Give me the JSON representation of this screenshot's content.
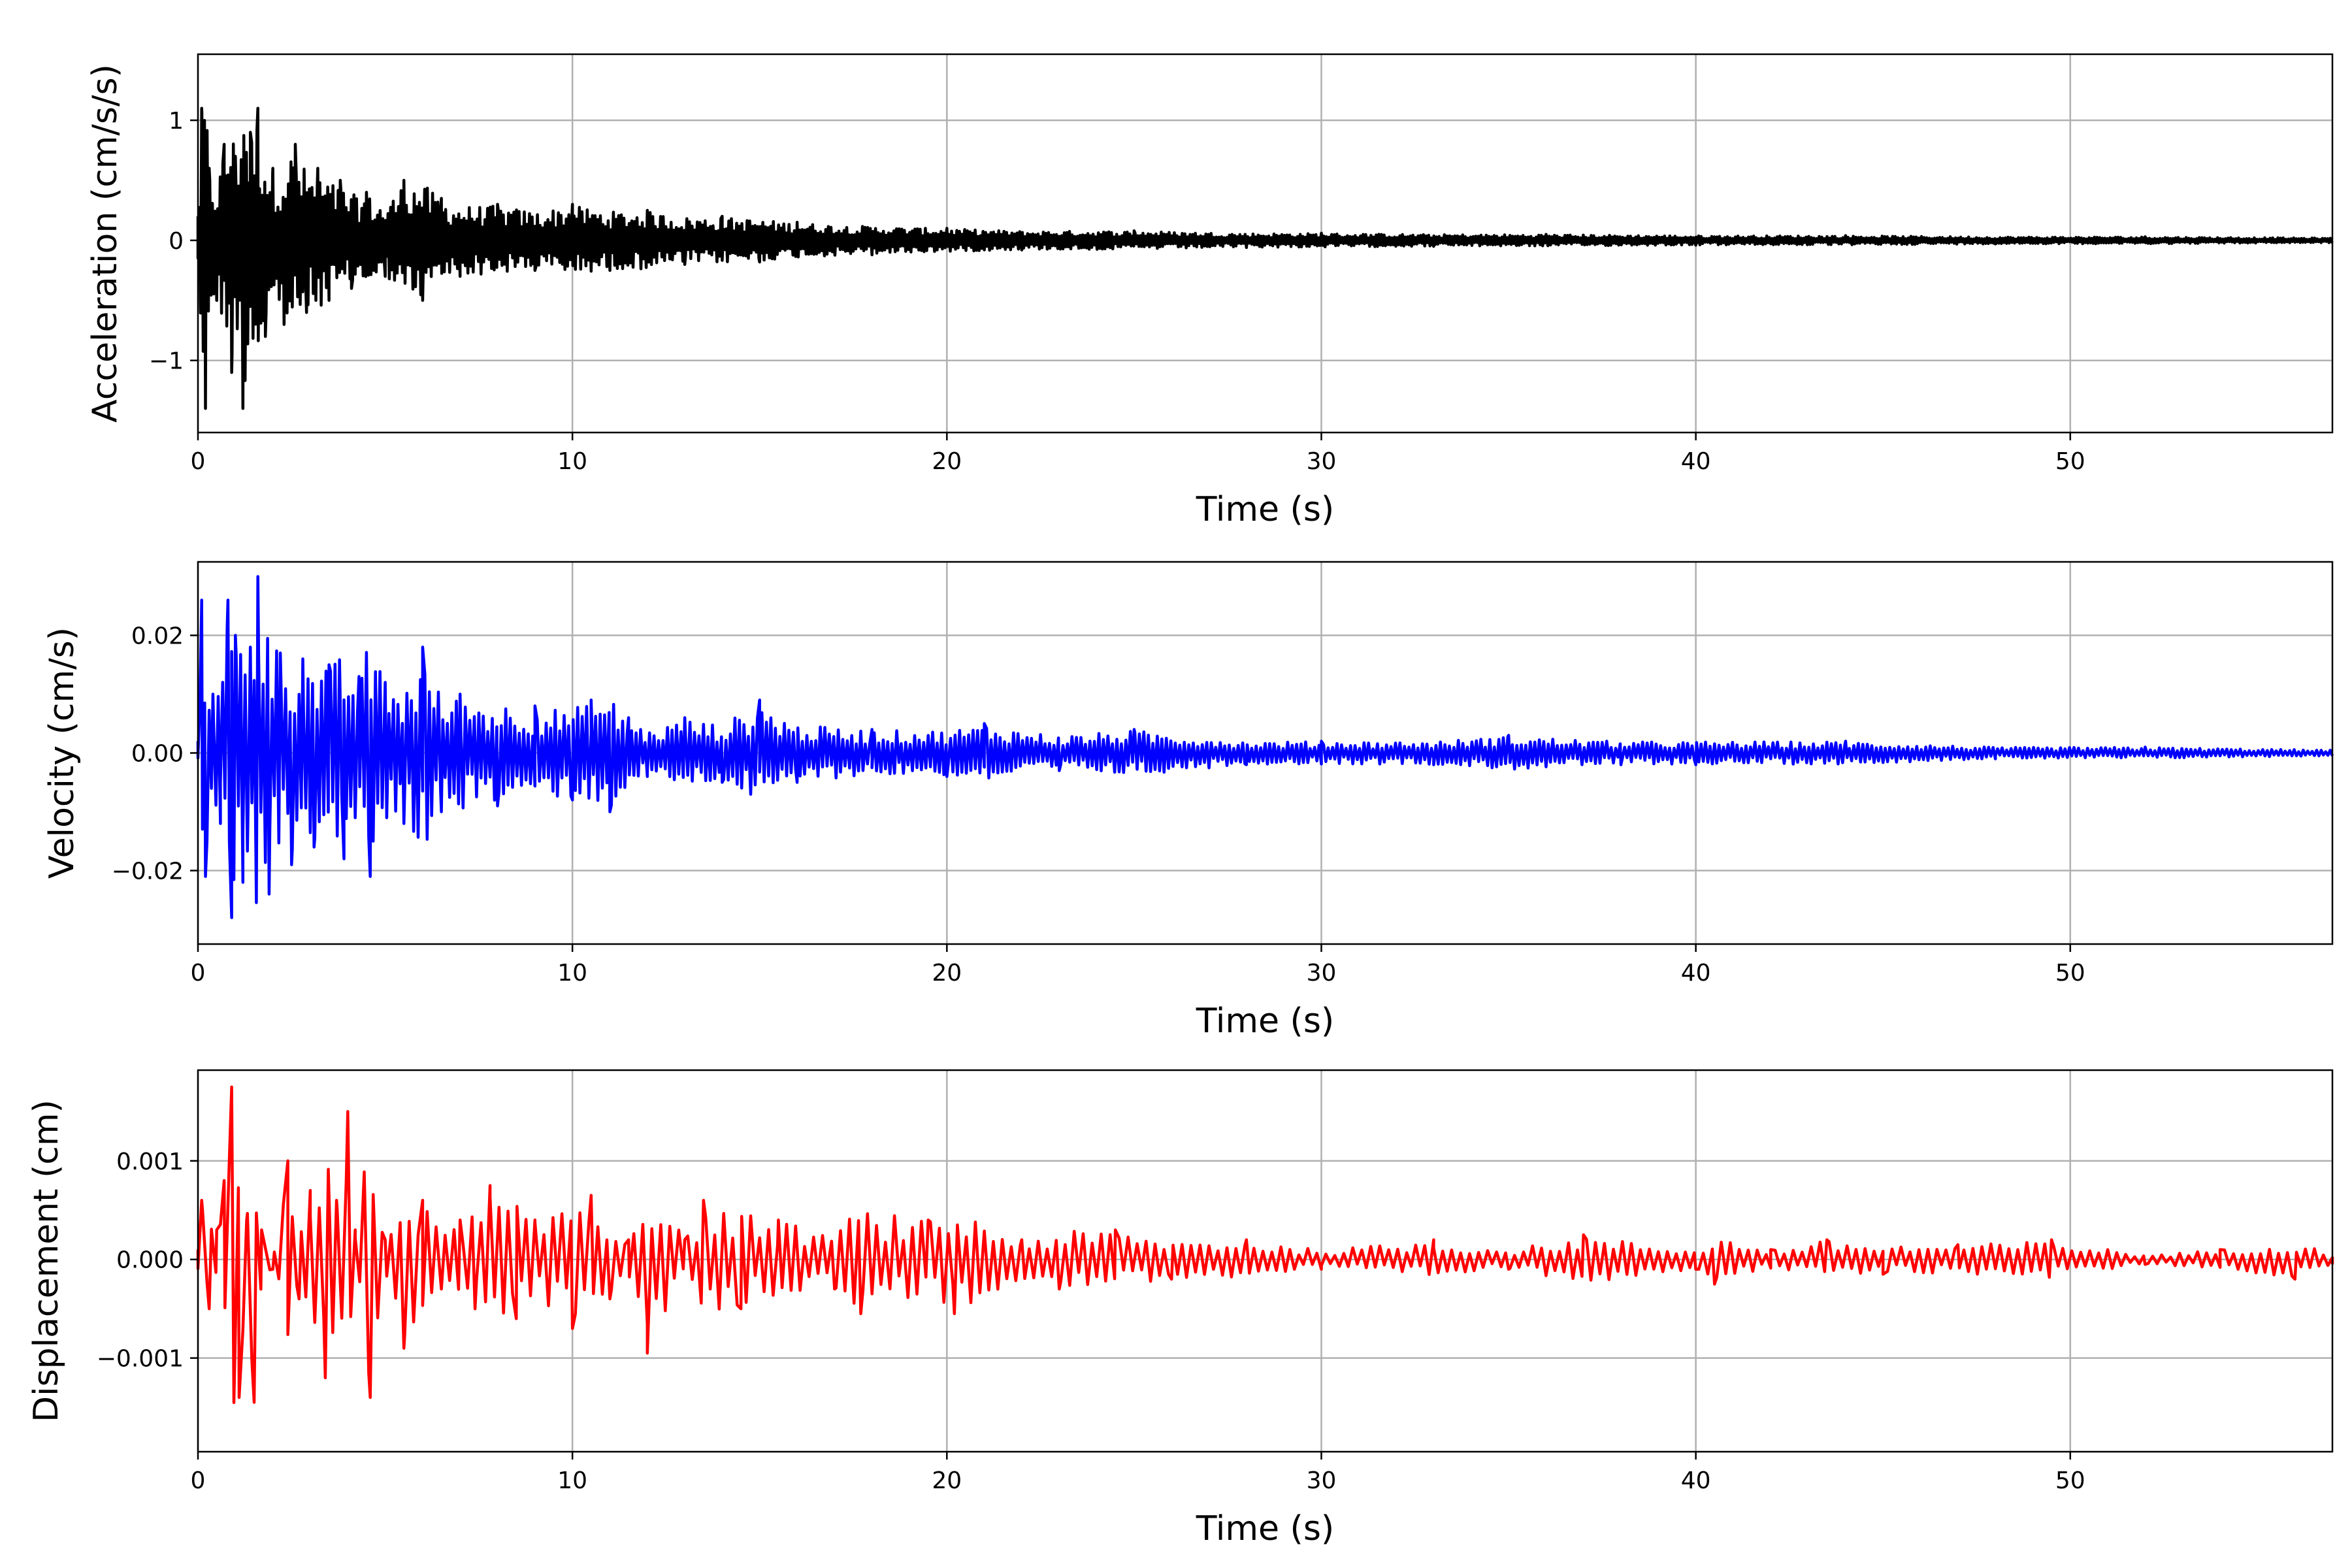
{
  "chart_data": [
    {
      "type": "line",
      "name_key": "acceleration",
      "xlabel": "Time (s)",
      "ylabel": "Acceleration (cm/s/s)",
      "xlim": [
        0,
        57
      ],
      "ylim": [
        -1.6,
        1.55
      ],
      "xticks": [
        0,
        10,
        20,
        30,
        40,
        50
      ],
      "xtick_labels": [
        "0",
        "10",
        "20",
        "30",
        "40",
        "50"
      ],
      "yticks": [
        -1,
        0,
        1
      ],
      "ytick_labels": [
        "−1",
        "0",
        "1"
      ],
      "grid": true,
      "color": "#000000",
      "series": [
        {
          "x": [
            0,
            0.1,
            0.2,
            0.3,
            0.5,
            0.7,
            0.9,
            1.0,
            1.2,
            1.4,
            1.6,
            1.8,
            2.0,
            2.3,
            2.6,
            2.9,
            3.2,
            3.5,
            3.8,
            4.1,
            4.5,
            5.0,
            5.5,
            6.0,
            6.5,
            7.0,
            8.0,
            9.0,
            10.0,
            11.0,
            12.0,
            13.0,
            14.0,
            15.0,
            16.0,
            18.0,
            20.0,
            22.0,
            25.0,
            28.0,
            30.0,
            33.0,
            36.0,
            40.0,
            44.0,
            48.0,
            52.0,
            57.0
          ],
          "y": [
            0.2,
            1.1,
            -1.4,
            0.6,
            -0.5,
            0.8,
            -1.1,
            0.7,
            -1.4,
            0.9,
            1.1,
            -0.8,
            0.6,
            -0.7,
            0.8,
            -0.6,
            0.6,
            -0.5,
            0.5,
            -0.4,
            0.4,
            -0.3,
            0.5,
            -0.5,
            0.35,
            -0.3,
            0.3,
            -0.25,
            0.3,
            -0.25,
            0.25,
            -0.2,
            0.2,
            -0.18,
            0.15,
            -0.12,
            0.1,
            -0.08,
            0.08,
            -0.06,
            0.06,
            -0.05,
            0.05,
            -0.04,
            0.04,
            -0.03,
            0.03,
            -0.02
          ]
        }
      ]
    },
    {
      "type": "line",
      "name_key": "velocity",
      "xlabel": "Time (s)",
      "ylabel": "Velocity (cm/s)",
      "xlim": [
        0,
        57
      ],
      "ylim": [
        -0.0325,
        0.0325
      ],
      "xticks": [
        0,
        10,
        20,
        30,
        40,
        50
      ],
      "xtick_labels": [
        "0",
        "10",
        "20",
        "30",
        "40",
        "50"
      ],
      "yticks": [
        -0.02,
        0.0,
        0.02
      ],
      "ytick_labels": [
        "−0.02",
        "0.00",
        "0.02"
      ],
      "grid": true,
      "color": "#0000ff",
      "series": [
        {
          "x": [
            0,
            0.1,
            0.2,
            0.4,
            0.6,
            0.8,
            0.9,
            1.0,
            1.2,
            1.4,
            1.6,
            1.9,
            2.2,
            2.5,
            2.8,
            3.1,
            3.5,
            3.9,
            4.3,
            4.6,
            5.0,
            5.5,
            6.0,
            6.5,
            7.0,
            8.0,
            9.0,
            10.0,
            10.5,
            11.0,
            11.5,
            12.0,
            13.0,
            14.0,
            15.0,
            16.0,
            18.0,
            20.0,
            21.0,
            23.0,
            25.0,
            28.0,
            30.0,
            33.0,
            35.0,
            38.0,
            40.0,
            44.0,
            48.0,
            52.0,
            57.0
          ],
          "y": [
            0.002,
            0.026,
            -0.021,
            0.01,
            -0.012,
            0.026,
            -0.028,
            0.02,
            -0.022,
            0.018,
            0.03,
            -0.024,
            0.017,
            -0.019,
            0.016,
            -0.016,
            0.015,
            -0.018,
            0.013,
            -0.021,
            0.012,
            -0.012,
            0.018,
            -0.01,
            0.01,
            -0.009,
            0.008,
            -0.008,
            0.009,
            -0.01,
            0.006,
            -0.004,
            0.006,
            -0.005,
            0.009,
            -0.005,
            0.004,
            -0.004,
            0.005,
            -0.003,
            0.004,
            -0.002,
            0.002,
            -0.002,
            0.003,
            -0.002,
            -0.002,
            0.002,
            -0.001,
            0.001,
            -0.0005
          ]
        }
      ]
    },
    {
      "type": "line",
      "name_key": "displacement",
      "xlabel": "Time (s)",
      "ylabel": "Displacement (cm)",
      "xlim": [
        0,
        57
      ],
      "ylim": [
        -0.00195,
        0.00192
      ],
      "xticks": [
        0,
        10,
        20,
        30,
        40,
        50
      ],
      "xtick_labels": [
        "0",
        "10",
        "20",
        "30",
        "40",
        "50"
      ],
      "yticks": [
        -0.001,
        0.0,
        0.001
      ],
      "ytick_labels": [
        "−0.001",
        "0.000",
        "0.001"
      ],
      "grid": true,
      "color": "#ff0000",
      "series": [
        {
          "x": [
            0,
            0.1,
            0.3,
            0.5,
            0.7,
            0.9,
            1.1,
            1.3,
            1.5,
            1.7,
            2.0,
            2.4,
            2.7,
            3.0,
            3.4,
            3.7,
            4.0,
            4.2,
            4.6,
            5.0,
            5.5,
            6.0,
            6.5,
            7.0,
            7.4,
            7.8,
            8.5,
            9.0,
            10.0,
            10.5,
            11.0,
            11.5,
            12.0,
            13.0,
            13.5,
            14.5,
            15.5,
            17.0,
            17.7,
            19.5,
            20.2,
            22.0,
            23.0,
            24.5,
            26.0,
            28.0,
            30.0,
            33.0,
            35.0,
            37.0,
            40.0,
            40.5,
            42.0,
            43.5,
            45.0,
            47.0,
            49.5,
            52.0,
            54.0,
            56.0,
            57.0
          ],
          "y": [
            0.0001,
            0.0006,
            -0.0005,
            0.0003,
            0.0008,
            0.00175,
            -0.0014,
            0.0004,
            -0.00145,
            0.0003,
            -0.0001,
            0.001,
            -0.0004,
            0.0007,
            -0.0012,
            0.0006,
            0.0015,
            0.0003,
            -0.0014,
            0.0002,
            -0.0009,
            0.0006,
            -0.0003,
            0.0004,
            -0.0005,
            0.00075,
            -0.0006,
            0.0004,
            -0.0007,
            0.00065,
            -0.0004,
            0.0002,
            -0.00095,
            0.0002,
            0.0006,
            -0.0005,
            0.0004,
            -0.0003,
            -0.00055,
            0.0004,
            -0.00055,
            0.0002,
            -0.0003,
            0.0003,
            -0.0002,
            0.0002,
            -0.0001,
            0.0002,
            -0.0001,
            0.00025,
            -0.0001,
            -0.00025,
            0.0001,
            0.0002,
            -0.00015,
            0.00015,
            0.0002,
            -5e-05,
            0.0001,
            -0.0002,
            -5e-05
          ]
        }
      ]
    }
  ]
}
